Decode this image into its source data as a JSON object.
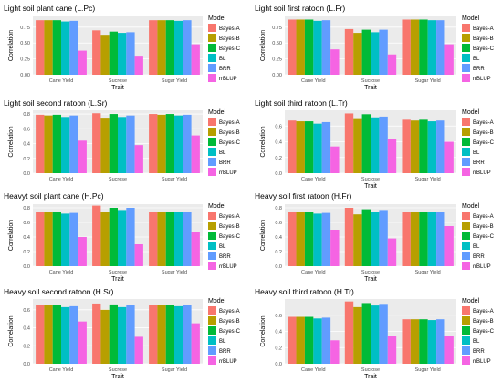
{
  "models": [
    "Bayes-A",
    "Bayes-B",
    "Bayes-C",
    "BL",
    "BRR",
    "rrBLUP"
  ],
  "colors": [
    "#F8766D",
    "#B79F00",
    "#00BA38",
    "#00BFC4",
    "#619CFF",
    "#F564E3"
  ],
  "chart_data": [
    {
      "type": "bar",
      "title": "Light soil plant cane (L.Pc)",
      "xlabel": "Trait",
      "ylabel": "Correlation",
      "legend_title": "Model",
      "legend_position": "right",
      "categories": [
        "Cane Yield",
        "Sucrose",
        "Sugar Yield"
      ],
      "yticks": [
        0.0,
        0.25,
        0.5,
        0.75
      ],
      "ytick_labels": [
        "0.00",
        "0.25",
        "0.50",
        "0.75"
      ],
      "ylim": [
        0,
        0.92
      ],
      "series": [
        {
          "name": "Bayes-A",
          "values": [
            0.86,
            0.7,
            0.86
          ]
        },
        {
          "name": "Bayes-B",
          "values": [
            0.86,
            0.63,
            0.86
          ]
        },
        {
          "name": "Bayes-C",
          "values": [
            0.86,
            0.68,
            0.86
          ]
        },
        {
          "name": "BL",
          "values": [
            0.84,
            0.66,
            0.85
          ]
        },
        {
          "name": "BRR",
          "values": [
            0.85,
            0.67,
            0.86
          ]
        },
        {
          "name": "rrBLUP",
          "values": [
            0.38,
            0.3,
            0.48
          ]
        }
      ]
    },
    {
      "type": "bar",
      "title": "Light soil first ratoon (L.Fr)",
      "xlabel": "Trait",
      "ylabel": "Correlation",
      "legend_title": "Model",
      "legend_position": "right",
      "categories": [
        "Cane Yield",
        "Sucrose",
        "Sugar Yield"
      ],
      "yticks": [
        0.0,
        0.25,
        0.5,
        0.75
      ],
      "ytick_labels": [
        "0.00",
        "0.25",
        "0.50",
        "0.75"
      ],
      "ylim": [
        0,
        0.92
      ],
      "series": [
        {
          "name": "Bayes-A",
          "values": [
            0.87,
            0.72,
            0.87
          ]
        },
        {
          "name": "Bayes-B",
          "values": [
            0.87,
            0.66,
            0.87
          ]
        },
        {
          "name": "Bayes-C",
          "values": [
            0.87,
            0.71,
            0.87
          ]
        },
        {
          "name": "BL",
          "values": [
            0.85,
            0.67,
            0.86
          ]
        },
        {
          "name": "BRR",
          "values": [
            0.86,
            0.71,
            0.86
          ]
        },
        {
          "name": "rrBLUP",
          "values": [
            0.4,
            0.32,
            0.48
          ]
        }
      ]
    },
    {
      "type": "bar",
      "title": "Light soil second ratoon (L.Sr)",
      "xlabel": "",
      "ylabel": "Correlation",
      "legend_title": "Model",
      "legend_position": "right",
      "categories": [
        "Cane Yield",
        "Sucrose",
        "Sugar Yield"
      ],
      "yticks": [
        0.0,
        0.2,
        0.4,
        0.6,
        0.8
      ],
      "ytick_labels": [
        "0.0",
        "0.2",
        "0.4",
        "0.6",
        "0.8"
      ],
      "ylim": [
        0,
        0.85
      ],
      "series": [
        {
          "name": "Bayes-A",
          "values": [
            0.79,
            0.81,
            0.8
          ]
        },
        {
          "name": "Bayes-B",
          "values": [
            0.78,
            0.75,
            0.79
          ]
        },
        {
          "name": "Bayes-C",
          "values": [
            0.79,
            0.8,
            0.8
          ]
        },
        {
          "name": "BL",
          "values": [
            0.76,
            0.76,
            0.78
          ]
        },
        {
          "name": "BRR",
          "values": [
            0.78,
            0.78,
            0.79
          ]
        },
        {
          "name": "rrBLUP",
          "values": [
            0.44,
            0.38,
            0.51
          ]
        }
      ]
    },
    {
      "type": "bar",
      "title": "Light soil third ratoon (L.Tr)",
      "xlabel": "Trait",
      "ylabel": "Correlation",
      "legend_title": "Model",
      "legend_position": "right",
      "categories": [
        "Cane Yield",
        "Sucrose",
        "Sugar Yield"
      ],
      "yticks": [
        0.0,
        0.2,
        0.4,
        0.6
      ],
      "ytick_labels": [
        "0.0",
        "0.2",
        "0.4",
        "0.6"
      ],
      "ylim": [
        0,
        0.8
      ],
      "series": [
        {
          "name": "Bayes-A",
          "values": [
            0.67,
            0.76,
            0.68
          ]
        },
        {
          "name": "Bayes-B",
          "values": [
            0.66,
            0.7,
            0.67
          ]
        },
        {
          "name": "Bayes-C",
          "values": [
            0.66,
            0.75,
            0.68
          ]
        },
        {
          "name": "BL",
          "values": [
            0.63,
            0.71,
            0.66
          ]
        },
        {
          "name": "BRR",
          "values": [
            0.65,
            0.72,
            0.67
          ]
        },
        {
          "name": "rrBLUP",
          "values": [
            0.34,
            0.44,
            0.4
          ]
        }
      ]
    },
    {
      "type": "bar",
      "title": "Heavyt soil plant cane (H.Pc)",
      "xlabel": "Trait",
      "ylabel": "Correlation",
      "legend_title": "Model",
      "legend_position": "right",
      "categories": [
        "Cane Yield",
        "Sucrose",
        "Sugar Yield"
      ],
      "yticks": [
        0.0,
        0.2,
        0.4,
        0.6,
        0.8
      ],
      "ytick_labels": [
        "0.0",
        "0.2",
        "0.4",
        "0.6",
        "0.8"
      ],
      "ylim": [
        0,
        0.85
      ],
      "series": [
        {
          "name": "Bayes-A",
          "values": [
            0.74,
            0.83,
            0.75
          ]
        },
        {
          "name": "Bayes-B",
          "values": [
            0.74,
            0.74,
            0.75
          ]
        },
        {
          "name": "Bayes-C",
          "values": [
            0.74,
            0.8,
            0.75
          ]
        },
        {
          "name": "BL",
          "values": [
            0.72,
            0.77,
            0.74
          ]
        },
        {
          "name": "BRR",
          "values": [
            0.73,
            0.8,
            0.75
          ]
        },
        {
          "name": "rrBLUP",
          "values": [
            0.4,
            0.3,
            0.47
          ]
        }
      ]
    },
    {
      "type": "bar",
      "title": "Heavy soil first ratoon (H.Fr)",
      "xlabel": "Trait",
      "ylabel": "Correlation",
      "legend_title": "Model",
      "legend_position": "right",
      "categories": [
        "Cane Yield",
        "Sucrose",
        "Sugar Yield"
      ],
      "yticks": [
        0.0,
        0.2,
        0.4,
        0.6,
        0.8
      ],
      "ytick_labels": [
        "0.0",
        "0.2",
        "0.4",
        "0.6",
        "0.8"
      ],
      "ylim": [
        0,
        0.85
      ],
      "series": [
        {
          "name": "Bayes-A",
          "values": [
            0.74,
            0.8,
            0.75
          ]
        },
        {
          "name": "Bayes-B",
          "values": [
            0.74,
            0.71,
            0.74
          ]
        },
        {
          "name": "Bayes-C",
          "values": [
            0.74,
            0.78,
            0.75
          ]
        },
        {
          "name": "BL",
          "values": [
            0.72,
            0.75,
            0.74
          ]
        },
        {
          "name": "BRR",
          "values": [
            0.73,
            0.77,
            0.74
          ]
        },
        {
          "name": "rrBLUP",
          "values": [
            0.5,
            0.38,
            0.55
          ]
        }
      ]
    },
    {
      "type": "bar",
      "title": "Heavy soil second ratoon (H.Sr)",
      "xlabel": "Trait",
      "ylabel": "Correlation",
      "legend_title": "Model",
      "legend_position": "right",
      "categories": [
        "Cane Yield",
        "Sucrose",
        "Sugar Yield"
      ],
      "yticks": [
        0.0,
        0.2,
        0.4,
        0.6
      ],
      "ytick_labels": [
        "0.0",
        "0.2",
        "0.4",
        "0.6"
      ],
      "ylim": [
        0,
        0.72
      ],
      "series": [
        {
          "name": "Bayes-A",
          "values": [
            0.65,
            0.67,
            0.65
          ]
        },
        {
          "name": "Bayes-B",
          "values": [
            0.65,
            0.6,
            0.65
          ]
        },
        {
          "name": "Bayes-C",
          "values": [
            0.65,
            0.66,
            0.65
          ]
        },
        {
          "name": "BL",
          "values": [
            0.63,
            0.63,
            0.64
          ]
        },
        {
          "name": "BRR",
          "values": [
            0.64,
            0.65,
            0.65
          ]
        },
        {
          "name": "rrBLUP",
          "values": [
            0.47,
            0.3,
            0.45
          ]
        }
      ]
    },
    {
      "type": "bar",
      "title": "Heavy soil third ratoon (H.Tr)",
      "xlabel": "Trait",
      "ylabel": "Correlation",
      "legend_title": "Model",
      "legend_position": "right",
      "categories": [
        "Cane Yield",
        "Sucrose",
        "Sugar Yield"
      ],
      "yticks": [
        0.0,
        0.2,
        0.4,
        0.6
      ],
      "ytick_labels": [
        "0.0",
        "0.2",
        "0.4",
        "0.6"
      ],
      "ylim": [
        0,
        0.8
      ],
      "series": [
        {
          "name": "Bayes-A",
          "values": [
            0.58,
            0.77,
            0.55
          ]
        },
        {
          "name": "Bayes-B",
          "values": [
            0.58,
            0.7,
            0.55
          ]
        },
        {
          "name": "Bayes-C",
          "values": [
            0.58,
            0.75,
            0.55
          ]
        },
        {
          "name": "BL",
          "values": [
            0.56,
            0.72,
            0.54
          ]
        },
        {
          "name": "BRR",
          "values": [
            0.57,
            0.74,
            0.55
          ]
        },
        {
          "name": "rrBLUP",
          "values": [
            0.29,
            0.34,
            0.34
          ]
        }
      ]
    }
  ]
}
